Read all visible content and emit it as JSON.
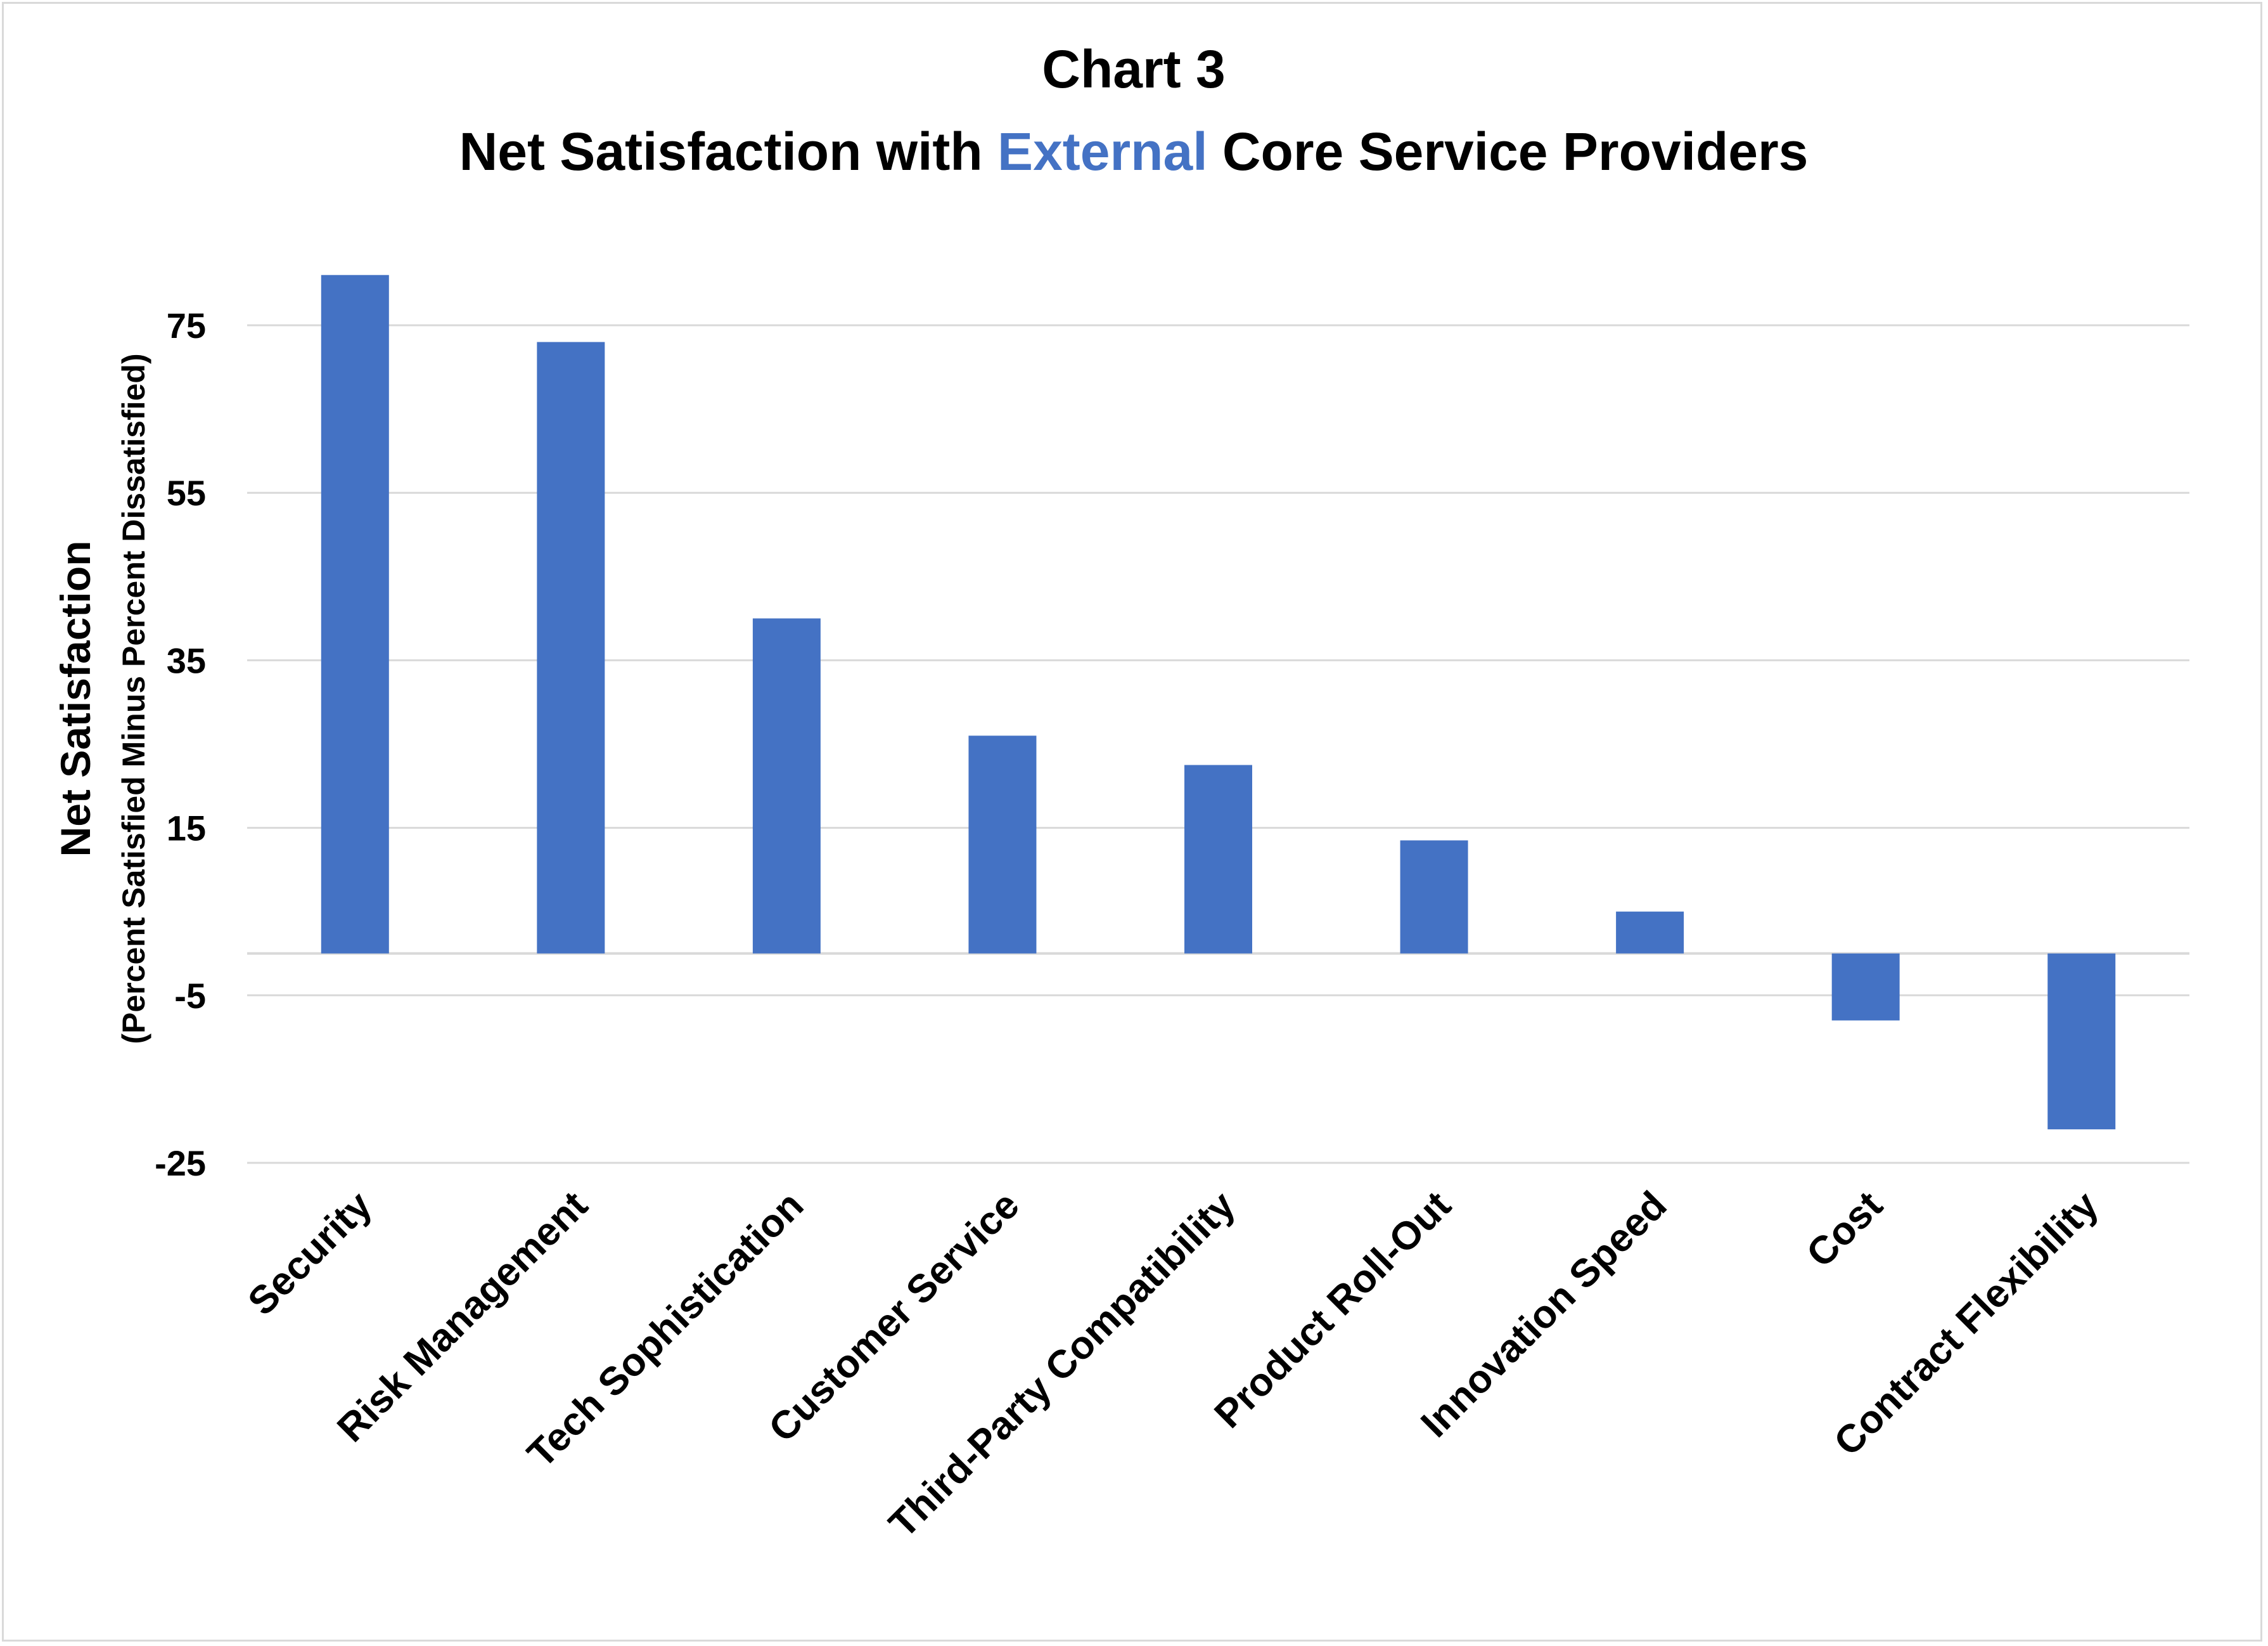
{
  "chart_data": {
    "type": "bar",
    "title_line1": "Chart 3",
    "title_line2_parts": {
      "before": "Net Satisfaction with ",
      "highlight": "External",
      "after": " Core Service Providers"
    },
    "ylabel": "Net Satisfaction",
    "ylabel_sub": "(Percent Satisfied Minus Percent Dissatisfied)",
    "xlabel": "",
    "categories": [
      "Security",
      "Risk Management",
      "Tech Sophistication",
      "Customer Service",
      "Third-Party Compatibility",
      "Product Roll-Out",
      "Innovation Speed",
      "Cost",
      "Contract Flexibility"
    ],
    "values": [
      81,
      73,
      40,
      26,
      22.5,
      13.5,
      5,
      -8,
      -21
    ],
    "yticks": [
      75,
      55,
      35,
      15,
      -5,
      -25
    ],
    "ylim": [
      -25,
      85
    ],
    "grid": true,
    "legend": "none",
    "colors": {
      "bar": "#4472c4",
      "highlight": "#4472c4",
      "grid": "#d9d9d9",
      "text": "#000000"
    }
  }
}
